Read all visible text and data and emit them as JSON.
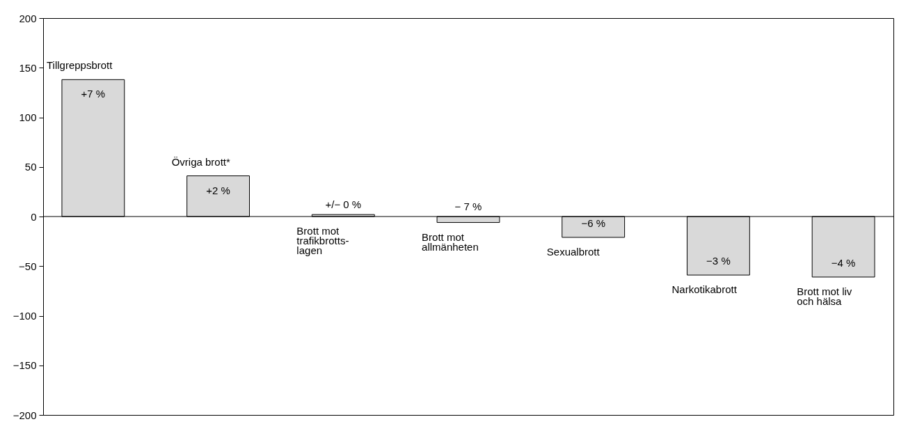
{
  "chart_data": {
    "type": "bar",
    "categories": [
      "Tillgreppsbrott",
      "Övriga brott*",
      "Brott mot\ntrafikbrotts-\nlagen",
      "Brott mot\nallmänheten",
      "Sexualbrott",
      "Narkotikabrott",
      "Brott mot liv\noch hälsa"
    ],
    "values": [
      138,
      41,
      2,
      -6,
      -21,
      -59,
      -61
    ],
    "annotations": [
      {
        "text": "+7 %",
        "x": "Tillgreppsbrott",
        "y": 138
      },
      {
        "text": "+2 %",
        "x": "Övriga brott*",
        "y": 41
      },
      {
        "text": "+/− 0 %",
        "x": "Brott mot\ntrafikbrotts-\nlagen",
        "y": 2
      },
      {
        "text": "− 7 %",
        "x": "Brott mot\nallmänheten",
        "y": -6
      },
      {
        "text": "−6 %",
        "x": "Sexualbrott",
        "y": -21
      },
      {
        "text": "−3 %",
        "x": "Narkotikabrott",
        "y": -59
      },
      {
        "text": "−4 %",
        "x": "Brott mot liv\noch hälsa",
        "y": -61
      }
    ],
    "color": "#d9d9d9",
    "ylim": [
      -200,
      200
    ],
    "yticks": [
      -200,
      -150,
      -100,
      -50,
      0,
      50,
      100,
      150,
      200
    ],
    "grid": false,
    "tick_labels": "y"
  }
}
